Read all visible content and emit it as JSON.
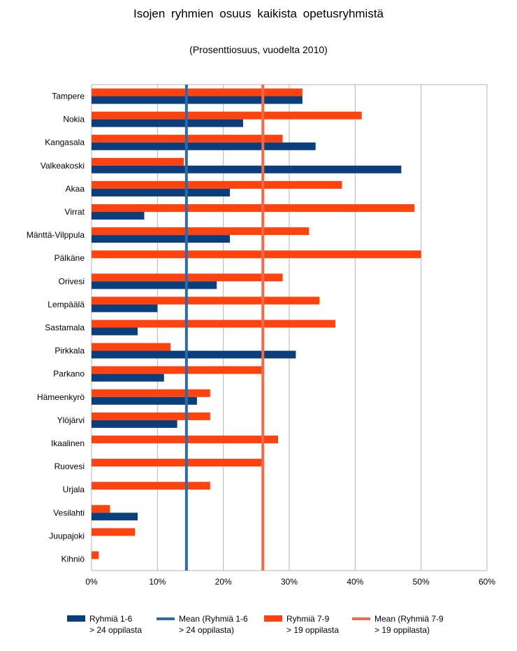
{
  "chart_data": {
    "type": "bar",
    "orientation": "horizontal",
    "title": "Isojen ryhmien osuus kaikista opetusryhmistä",
    "subtitle": "(Prosenttiosuus, vuodelta 2010)",
    "categories": [
      "Tampere",
      "Nokia",
      "Kangasala",
      "Valkeakoski",
      "Akaa",
      "Virrat",
      "Mänttä-Vilppula",
      "Pälkäne",
      "Orivesi",
      "Lempäälä",
      "Sastamala",
      "Pirkkala",
      "Parkano",
      "Hämeenkyrö",
      "Ylöjärvi",
      "Ikaalinen",
      "Ruovesi",
      "Urjala",
      "Vesilahti",
      "Juupajoki",
      "Kihniö"
    ],
    "series": [
      {
        "name": "Ryhmiä 1-6\n> 24 oppilasta",
        "color": "#0b3f7c",
        "values": [
          32,
          23,
          34,
          47,
          21,
          8,
          21,
          0,
          19,
          10,
          7,
          31,
          11,
          16,
          13,
          0,
          0,
          0,
          7,
          0,
          0
        ]
      },
      {
        "name": "Ryhmiä 7-9\n> 19 oppilasta",
        "color": "#ff420e",
        "values": [
          32,
          41,
          29,
          14,
          38,
          49,
          33,
          50,
          29,
          34.6,
          37,
          12,
          26,
          18,
          18,
          28.3,
          26,
          18,
          2.8,
          6.6,
          1.1
        ]
      }
    ],
    "means": [
      {
        "name": "Mean (Ryhmiä 1-6\n> 24 oppilasta)",
        "value": 14.4,
        "color": "#2e6aa8"
      },
      {
        "name": "Mean (Ryhmiä 7-9\n> 19 oppilasta)",
        "value": 26,
        "color": "#f26a4a"
      }
    ],
    "xlim": [
      0,
      60
    ],
    "xticks": [
      "0%",
      "10%",
      "20%",
      "30%",
      "40%",
      "50%",
      "60%"
    ],
    "grid": true,
    "legend_position": "bottom"
  },
  "colors": {
    "grid": "#b3b3b3",
    "axis": "#b3b3b3"
  }
}
